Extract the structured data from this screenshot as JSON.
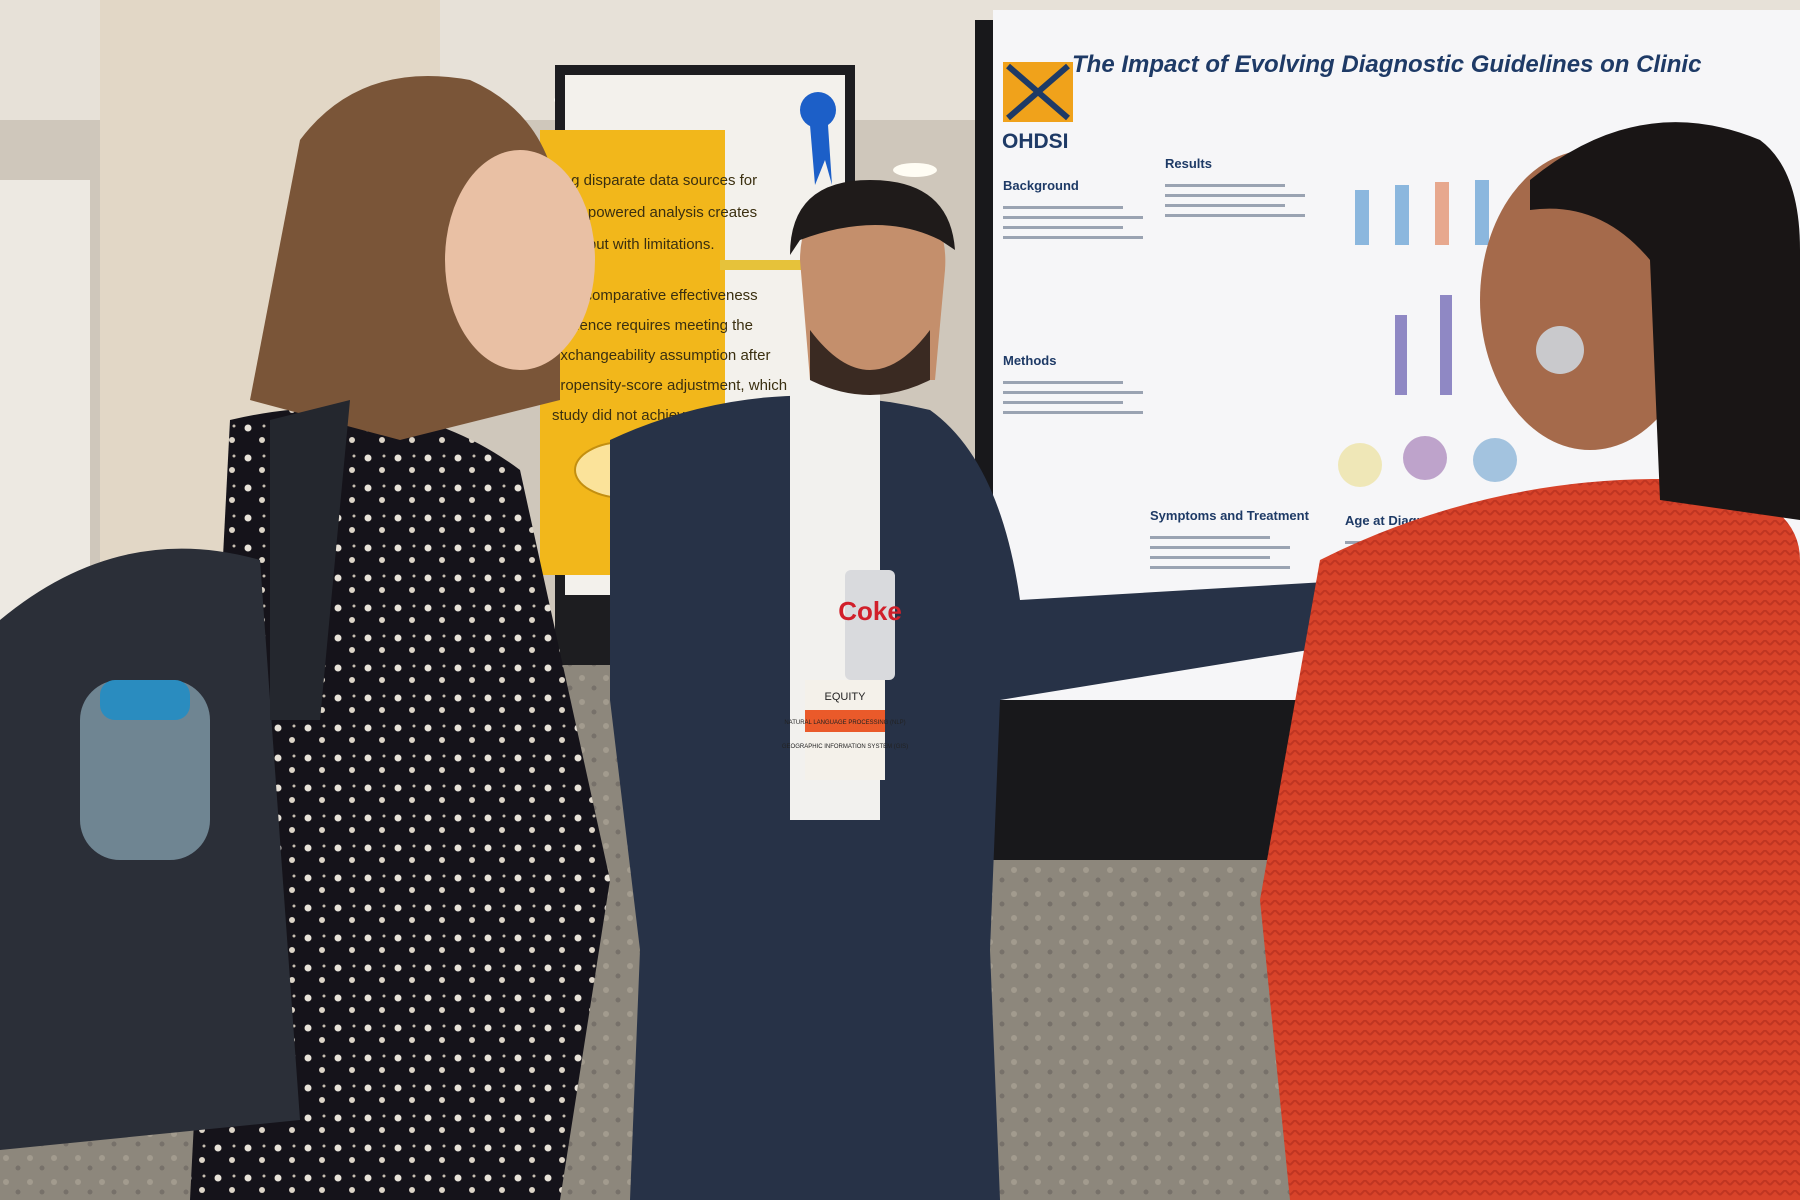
{
  "poster": {
    "logo": "OHDSI",
    "title": "The Impact of Evolving Diagnostic Guidelines on Clinic",
    "sections": [
      "Background",
      "Results",
      "Methods",
      "Symptoms and Treatment",
      "Age at Diagnosis and Date of Cohort E"
    ]
  },
  "yellow_poster": {
    "lines": [
      "cing disparate data sources for",
      "ately powered analysis creates",
      "unity but with limitations.",
      "able comparative effectiveness",
      "evidence requires meeting the",
      "exchangeability assumption after",
      "propensity-score adjustment, which our",
      "study did not achieve."
    ]
  },
  "badge": {
    "lines": [
      "EQUITY",
      "NATURAL LANGUAGE PROCESSING (NLP)",
      "GEOGRAPHIC INFORMATION SYSTEM (GIS)"
    ]
  },
  "can": {
    "label": "Coke"
  }
}
